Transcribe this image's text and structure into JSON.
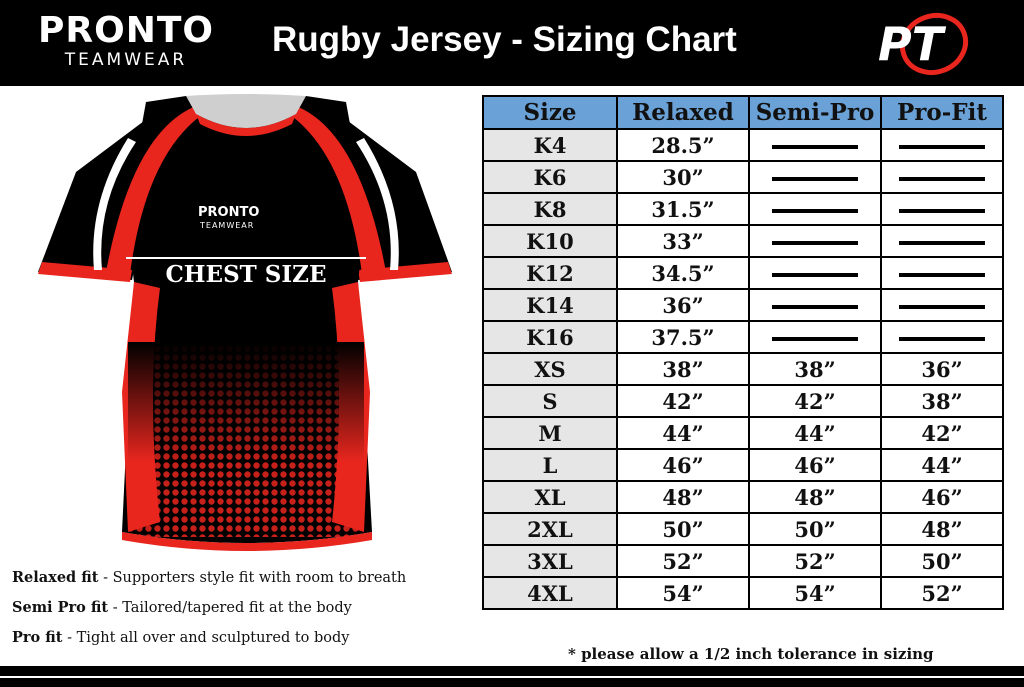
{
  "header": {
    "brand_main": "PRONTO",
    "brand_sub": "TEAMWEAR",
    "title": "Rugby Jersey - Sizing Chart",
    "logo_text": "PT"
  },
  "jersey": {
    "brand_main": "PRONTO",
    "brand_sub": "TEAMWEAR",
    "chest_label": "CHEST SIZE"
  },
  "table": {
    "headers": [
      "Size",
      "Relaxed",
      "Semi-Pro",
      "Pro-Fit"
    ],
    "rows": [
      {
        "size": "K4",
        "relaxed": "28.5”",
        "semi": "",
        "pro": ""
      },
      {
        "size": "K6",
        "relaxed": "30”",
        "semi": "",
        "pro": ""
      },
      {
        "size": "K8",
        "relaxed": "31.5”",
        "semi": "",
        "pro": ""
      },
      {
        "size": "K10",
        "relaxed": "33”",
        "semi": "",
        "pro": ""
      },
      {
        "size": "K12",
        "relaxed": "34.5”",
        "semi": "",
        "pro": ""
      },
      {
        "size": "K14",
        "relaxed": "36”",
        "semi": "",
        "pro": ""
      },
      {
        "size": "K16",
        "relaxed": "37.5”",
        "semi": "",
        "pro": ""
      },
      {
        "size": "XS",
        "relaxed": "38”",
        "semi": "38”",
        "pro": "36”"
      },
      {
        "size": "S",
        "relaxed": "42”",
        "semi": "42”",
        "pro": "38”"
      },
      {
        "size": "M",
        "relaxed": "44”",
        "semi": "44”",
        "pro": "42”"
      },
      {
        "size": "L",
        "relaxed": "46”",
        "semi": "46”",
        "pro": "44”"
      },
      {
        "size": "XL",
        "relaxed": "48”",
        "semi": "48”",
        "pro": "46”"
      },
      {
        "size": "2XL",
        "relaxed": "50”",
        "semi": "50”",
        "pro": "48”"
      },
      {
        "size": "3XL",
        "relaxed": "52”",
        "semi": "52”",
        "pro": "50”"
      },
      {
        "size": "4XL",
        "relaxed": "54”",
        "semi": "54”",
        "pro": "52”"
      }
    ],
    "note": "* please allow a 1/2 inch tolerance in sizing"
  },
  "legend": [
    {
      "term": "Relaxed fit",
      "desc": " - Supporters style fit with room to breath"
    },
    {
      "term": "Semi Pro fit",
      "desc": " - Tailored/tapered fit at the body"
    },
    {
      "term": "Pro fit",
      "desc": " - Tight all over and sculptured to body"
    }
  ],
  "colors": {
    "header_bg": "#000000",
    "table_header": "#6aa2d8",
    "size_cell": "#e6e6e6",
    "jersey_accent": "#e8261e"
  }
}
